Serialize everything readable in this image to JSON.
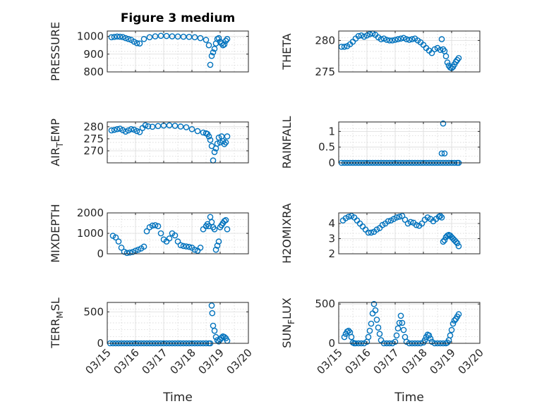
{
  "figure": {
    "title": "Figure 3 medium",
    "marker_color": "#0072BD"
  },
  "chart_data": [
    {
      "id": "pressure",
      "type": "scatter",
      "title": "Figure 3 medium",
      "ylabel": "PRESSURE",
      "xlabel": "",
      "xlim": [
        0,
        5
      ],
      "ylim": [
        800,
        1030
      ],
      "yticks": [
        800,
        900,
        1000
      ],
      "xticklabels": [],
      "x": [
        0.15,
        0.25,
        0.35,
        0.45,
        0.55,
        0.65,
        0.75,
        0.85,
        0.95,
        1.05,
        1.15,
        1.3,
        1.5,
        1.7,
        1.9,
        2.1,
        2.3,
        2.5,
        2.7,
        2.9,
        3.1,
        3.3,
        3.5,
        3.6,
        3.65,
        3.7,
        3.75,
        3.8,
        3.85,
        3.9,
        3.95,
        4.0,
        4.05,
        4.1,
        4.15,
        4.2,
        4.25
      ],
      "y": [
        995,
        997,
        999,
        998,
        996,
        990,
        985,
        980,
        970,
        962,
        960,
        985,
        995,
        1000,
        1003,
        1002,
        1000,
        999,
        998,
        997,
        995,
        990,
        980,
        950,
        840,
        890,
        910,
        930,
        960,
        985,
        990,
        970,
        960,
        950,
        955,
        975,
        985
      ]
    },
    {
      "id": "theta",
      "type": "scatter",
      "ylabel": "THETA",
      "xlabel": "",
      "xlim": [
        0,
        5
      ],
      "ylim": [
        275,
        281.5
      ],
      "yticks": [
        275,
        280
      ],
      "xticklabels": [],
      "x": [
        0.1,
        0.2,
        0.3,
        0.4,
        0.5,
        0.6,
        0.7,
        0.8,
        0.9,
        1.0,
        1.1,
        1.2,
        1.3,
        1.4,
        1.5,
        1.6,
        1.7,
        1.8,
        1.9,
        2.0,
        2.1,
        2.2,
        2.3,
        2.4,
        2.5,
        2.6,
        2.7,
        2.8,
        2.9,
        3.0,
        3.1,
        3.2,
        3.3,
        3.4,
        3.5,
        3.6,
        3.65,
        3.7,
        3.75,
        3.8,
        3.85,
        3.9,
        3.95,
        4.0,
        4.05,
        4.1,
        4.15,
        4.2,
        4.25
      ],
      "y": [
        279.0,
        279.0,
        279.1,
        279.4,
        279.8,
        280.3,
        280.7,
        280.8,
        280.6,
        280.8,
        281.0,
        281.1,
        280.9,
        280.5,
        280.2,
        280.3,
        280.1,
        280.0,
        280.0,
        280.1,
        280.2,
        280.3,
        280.4,
        280.2,
        280.1,
        280.2,
        280.3,
        280.0,
        279.7,
        279.3,
        278.8,
        278.4,
        278.0,
        278.6,
        278.8,
        278.5,
        280.2,
        278.6,
        278.3,
        277.5,
        276.5,
        276.0,
        275.7,
        275.6,
        275.8,
        276.2,
        276.6,
        276.9,
        277.2
      ]
    },
    {
      "id": "airtemp",
      "type": "scatter",
      "ylabel": "AIR_TEMP",
      "xlabel": "",
      "xlim": [
        0,
        5
      ],
      "ylim": [
        265,
        282
      ],
      "yticks": [
        270,
        275,
        280
      ],
      "xticklabels": [],
      "x": [
        0.15,
        0.25,
        0.35,
        0.45,
        0.55,
        0.65,
        0.75,
        0.85,
        0.95,
        1.05,
        1.15,
        1.25,
        1.35,
        1.45,
        1.6,
        1.8,
        2.0,
        2.2,
        2.4,
        2.6,
        2.8,
        3.0,
        3.2,
        3.4,
        3.5,
        3.55,
        3.6,
        3.65,
        3.7,
        3.75,
        3.8,
        3.85,
        3.9,
        3.95,
        4.0,
        4.05,
        4.1,
        4.15,
        4.2,
        4.25
      ],
      "y": [
        278.5,
        278.7,
        279.0,
        279.2,
        278.6,
        278.0,
        278.5,
        279.0,
        278.8,
        278.2,
        277.8,
        279.5,
        280.6,
        280.2,
        280.0,
        280.3,
        280.5,
        280.6,
        280.4,
        280.1,
        279.8,
        279.0,
        278.2,
        277.6,
        277.3,
        277.0,
        276.0,
        274.5,
        272.0,
        266.0,
        269.5,
        271.0,
        273.0,
        275.5,
        273.5,
        276.0,
        274.0,
        272.8,
        273.5,
        276.0
      ]
    },
    {
      "id": "rainfall",
      "type": "scatter",
      "ylabel": "RAINFALL",
      "xlabel": "",
      "xlim": [
        0,
        5
      ],
      "ylim": [
        0,
        1.3
      ],
      "yticks": [
        0,
        0.5,
        1
      ],
      "yticklabels": [
        "0",
        "0.5",
        "1"
      ],
      "xticklabels": [],
      "x": [
        0.1,
        0.2,
        0.3,
        0.4,
        0.5,
        0.6,
        0.7,
        0.8,
        0.9,
        1.0,
        1.1,
        1.2,
        1.3,
        1.4,
        1.5,
        1.6,
        1.7,
        1.8,
        1.9,
        2.0,
        2.1,
        2.2,
        2.3,
        2.4,
        2.5,
        2.6,
        2.7,
        2.8,
        2.9,
        3.0,
        3.1,
        3.2,
        3.3,
        3.4,
        3.5,
        3.6,
        3.7,
        3.8,
        3.9,
        4.0,
        4.1,
        4.2,
        4.25,
        3.65,
        3.7,
        3.75
      ],
      "y": [
        0,
        0,
        0,
        0,
        0,
        0,
        0,
        0,
        0,
        0,
        0,
        0,
        0,
        0,
        0,
        0,
        0,
        0,
        0,
        0,
        0,
        0,
        0,
        0,
        0,
        0,
        0,
        0,
        0,
        0,
        0,
        0,
        0,
        0,
        0,
        0,
        0,
        0,
        0,
        0,
        0,
        0,
        0,
        0.3,
        1.25,
        0.3
      ]
    },
    {
      "id": "mixdepth",
      "type": "scatter",
      "ylabel": "MIXDEPTH",
      "xlabel": "",
      "xlim": [
        0,
        5
      ],
      "ylim": [
        0,
        2000
      ],
      "yticks": [
        0,
        1000,
        2000
      ],
      "xticklabels": [],
      "x": [
        0.2,
        0.3,
        0.4,
        0.5,
        0.6,
        0.7,
        0.8,
        0.9,
        1.0,
        1.1,
        1.2,
        1.3,
        1.4,
        1.5,
        1.6,
        1.7,
        1.8,
        1.9,
        2.0,
        2.1,
        2.2,
        2.3,
        2.4,
        2.5,
        2.6,
        2.7,
        2.8,
        2.9,
        3.0,
        3.1,
        3.2,
        3.3,
        3.4,
        3.5,
        3.55,
        3.6,
        3.65,
        3.7,
        3.75,
        3.8,
        3.85,
        3.9,
        3.95,
        4.0,
        4.05,
        4.1,
        4.15,
        4.2,
        4.25
      ],
      "y": [
        880,
        800,
        600,
        300,
        100,
        40,
        60,
        90,
        150,
        200,
        260,
        350,
        1100,
        1300,
        1380,
        1400,
        1350,
        1000,
        700,
        600,
        750,
        1000,
        900,
        600,
        420,
        380,
        360,
        340,
        300,
        200,
        150,
        300,
        1200,
        1350,
        1450,
        1350,
        1800,
        1550,
        1300,
        1200,
        200,
        400,
        600,
        1300,
        1400,
        1500,
        1600,
        1650,
        1200
      ]
    },
    {
      "id": "h2omixra",
      "type": "scatter",
      "ylabel": "H2OMIXRA",
      "xlabel": "",
      "xlim": [
        0,
        5
      ],
      "ylim": [
        2,
        4.7
      ],
      "yticks": [
        2,
        3,
        4
      ],
      "xticklabels": [],
      "x": [
        0.15,
        0.25,
        0.35,
        0.45,
        0.55,
        0.65,
        0.75,
        0.85,
        0.95,
        1.05,
        1.15,
        1.25,
        1.35,
        1.45,
        1.55,
        1.65,
        1.75,
        1.85,
        1.95,
        2.05,
        2.15,
        2.25,
        2.35,
        2.45,
        2.55,
        2.65,
        2.75,
        2.85,
        2.95,
        3.05,
        3.15,
        3.25,
        3.35,
        3.45,
        3.55,
        3.6,
        3.65,
        3.7,
        3.75,
        3.8,
        3.85,
        3.9,
        3.95,
        4.0,
        4.05,
        4.1,
        4.15,
        4.2,
        4.25
      ],
      "y": [
        4.2,
        4.35,
        4.45,
        4.5,
        4.4,
        4.2,
        4.0,
        3.8,
        3.6,
        3.4,
        3.4,
        3.45,
        3.6,
        3.7,
        3.9,
        4.0,
        4.15,
        4.2,
        4.3,
        4.4,
        4.45,
        4.5,
        4.25,
        4.0,
        4.1,
        4.05,
        3.9,
        3.85,
        4.0,
        4.25,
        4.4,
        4.3,
        4.15,
        4.3,
        4.45,
        4.5,
        4.4,
        2.8,
        2.9,
        3.1,
        3.2,
        3.25,
        3.2,
        3.1,
        3.0,
        2.9,
        2.8,
        2.7,
        2.5
      ]
    },
    {
      "id": "terrmsl",
      "type": "scatter",
      "ylabel": "TERR_MSL",
      "xlabel": "Time",
      "xlim": [
        0,
        5
      ],
      "ylim": [
        0,
        650
      ],
      "yticks": [
        0,
        500
      ],
      "xticklabels": [
        "03/15",
        "03/16",
        "03/17",
        "03/18",
        "03/19",
        "03/20"
      ],
      "x": [
        0.1,
        0.2,
        0.3,
        0.4,
        0.5,
        0.6,
        0.7,
        0.8,
        0.9,
        1.0,
        1.1,
        1.2,
        1.3,
        1.4,
        1.5,
        1.6,
        1.7,
        1.8,
        1.9,
        2.0,
        2.1,
        2.2,
        2.3,
        2.4,
        2.5,
        2.6,
        2.7,
        2.8,
        2.9,
        3.0,
        3.1,
        3.2,
        3.3,
        3.4,
        3.5,
        3.6,
        3.65,
        3.7,
        3.72,
        3.75,
        3.8,
        3.85,
        3.9,
        3.95,
        4.0,
        4.05,
        4.1,
        4.15,
        4.2,
        4.25
      ],
      "y": [
        0,
        0,
        0,
        0,
        0,
        0,
        0,
        0,
        0,
        0,
        0,
        0,
        0,
        0,
        0,
        0,
        0,
        0,
        0,
        0,
        0,
        0,
        0,
        0,
        0,
        0,
        0,
        0,
        0,
        0,
        0,
        0,
        0,
        0,
        0,
        0,
        0,
        600,
        480,
        280,
        200,
        100,
        50,
        30,
        60,
        90,
        110,
        100,
        80,
        40
      ]
    },
    {
      "id": "sunflux",
      "type": "scatter",
      "ylabel": "SUN_FLUX",
      "xlabel": "Time",
      "xlim": [
        0,
        5
      ],
      "ylim": [
        0,
        520
      ],
      "yticks": [
        0,
        500
      ],
      "xticklabels": [
        "03/15",
        "03/16",
        "03/17",
        "03/18",
        "03/19",
        "03/20"
      ],
      "x": [
        0.2,
        0.25,
        0.3,
        0.35,
        0.4,
        0.45,
        0.5,
        0.55,
        0.6,
        0.7,
        0.8,
        0.9,
        1.0,
        1.05,
        1.1,
        1.15,
        1.2,
        1.25,
        1.3,
        1.35,
        1.4,
        1.45,
        1.5,
        1.6,
        1.7,
        1.8,
        1.9,
        2.0,
        2.05,
        2.1,
        2.15,
        2.2,
        2.25,
        2.3,
        2.35,
        2.4,
        2.5,
        2.6,
        2.7,
        2.8,
        2.9,
        3.0,
        3.05,
        3.1,
        3.15,
        3.2,
        3.25,
        3.3,
        3.4,
        3.5,
        3.6,
        3.7,
        3.8,
        3.85,
        3.9,
        3.95,
        4.0,
        4.05,
        4.1,
        4.15,
        4.2,
        4.25
      ],
      "y": [
        80,
        120,
        150,
        160,
        140,
        80,
        10,
        0,
        0,
        0,
        0,
        0,
        20,
        80,
        160,
        250,
        380,
        500,
        420,
        300,
        200,
        120,
        40,
        0,
        0,
        0,
        0,
        20,
        100,
        190,
        260,
        350,
        260,
        170,
        80,
        20,
        0,
        0,
        0,
        0,
        0,
        10,
        40,
        80,
        110,
        100,
        60,
        20,
        0,
        0,
        0,
        0,
        0,
        10,
        40,
        100,
        170,
        250,
        290,
        310,
        340,
        370
      ]
    }
  ]
}
